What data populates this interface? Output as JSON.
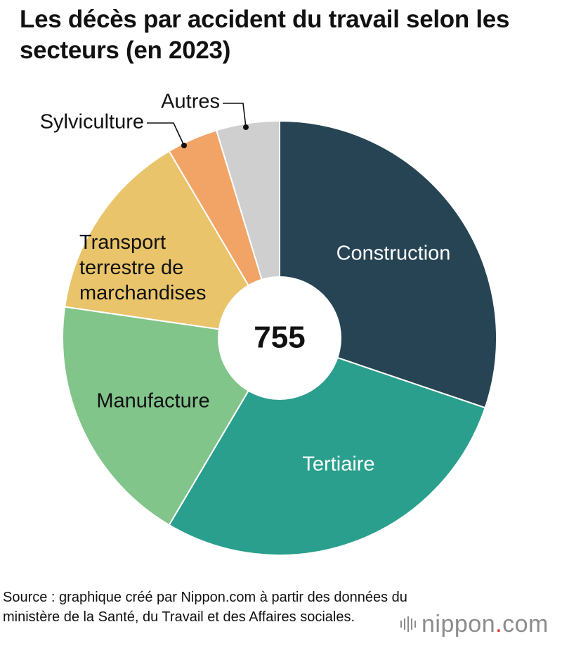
{
  "title": "Les décès par accident du travail selon les secteurs (en 2023)",
  "chart_data": {
    "type": "pie",
    "total_label": "755",
    "segments": [
      {
        "label": "Construction",
        "value": 30.2,
        "color": "#274454",
        "text_color": "#ffffff"
      },
      {
        "label": "Tertiaire",
        "value": 28.3,
        "color": "#2a9f8d",
        "text_color": "#ffffff"
      },
      {
        "label": "Manufacture",
        "value": 18.8,
        "color": "#82c58a",
        "text_color": "#111111"
      },
      {
        "label": "Transport terrestre de marchandises",
        "label_lines": [
          "Transport",
          "terrestre de",
          "marchandises"
        ],
        "value": 14.2,
        "color": "#e9c46a",
        "text_color": "#111111"
      },
      {
        "label": "Sylviculture",
        "value": 3.8,
        "color": "#f1a466",
        "text_color": "#111111"
      },
      {
        "label": "Autres",
        "value": 4.7,
        "color": "#cfcfcf",
        "text_color": "#111111"
      }
    ]
  },
  "source": "Source : graphique créé par Nippon.com à partir des données du ministère de la Santé, du Travail et des Affaires sociales.",
  "brand": {
    "name": "nippon",
    "dot": ".",
    "tld": "com"
  }
}
